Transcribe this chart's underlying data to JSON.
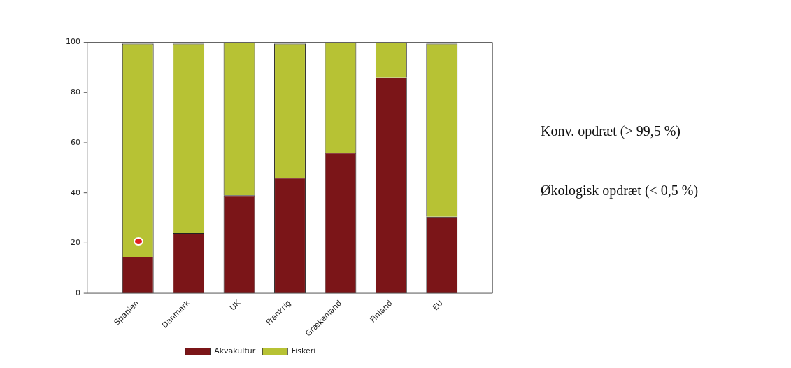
{
  "chart_data": {
    "type": "bar",
    "stacked": true,
    "categories": [
      "Spanien",
      "Danmark",
      "UK",
      "Frankrig",
      "Grækenland",
      "Finland",
      "EU"
    ],
    "series": [
      {
        "name": "Akvakultur",
        "color": "#7b1518",
        "values": [
          14.5,
          24,
          39,
          46,
          56,
          86,
          30.5
        ]
      },
      {
        "name": "Fiskeri",
        "color": "#b7c234",
        "values": [
          85,
          75.5,
          61,
          53.5,
          44,
          14,
          69
        ]
      },
      {
        "color": "#a8a8a8",
        "values": [
          0.5,
          0.5,
          null,
          0.5,
          null,
          null,
          0.5
        ]
      }
    ],
    "ylim": [
      0,
      100
    ],
    "yticks": [
      0,
      20,
      40,
      60,
      80,
      100
    ],
    "grid": false,
    "legend": "bottom",
    "annotations": [
      "Konv. opdræt (> 99,5 %)",
      "Økologisk opdræt (< 0,5 %)"
    ]
  }
}
